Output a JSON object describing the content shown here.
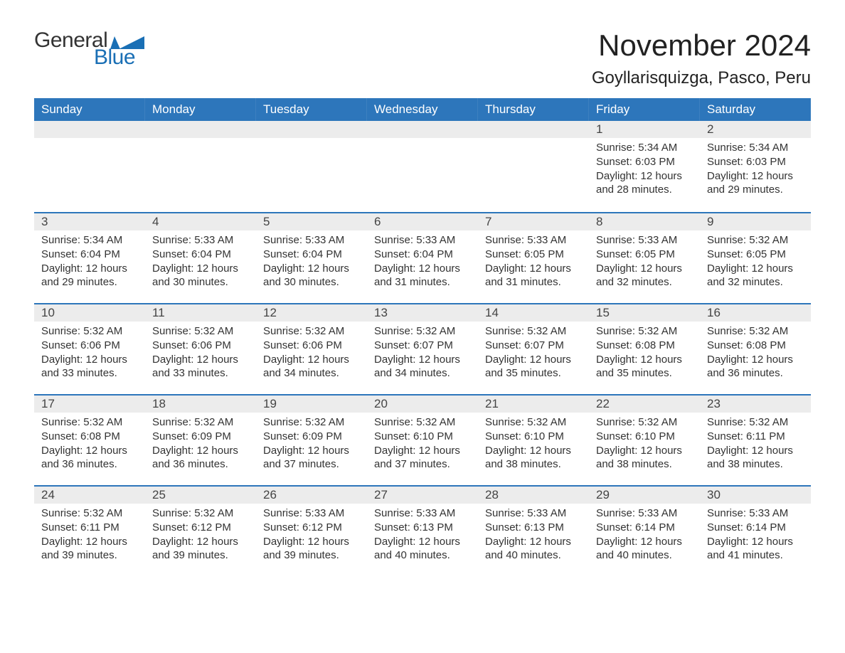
{
  "logo": {
    "text1": "General",
    "text2": "Blue"
  },
  "title": "November 2024",
  "location": "Goyllarisquizga, Pasco, Peru",
  "colors": {
    "header_bg": "#2d76bb",
    "header_text": "#ffffff",
    "daynum_bg": "#ececec",
    "week_border": "#2d76bb",
    "logo_accent": "#1a6fb5",
    "body_text": "#333333"
  },
  "day_headers": [
    "Sunday",
    "Monday",
    "Tuesday",
    "Wednesday",
    "Thursday",
    "Friday",
    "Saturday"
  ],
  "weeks": [
    [
      null,
      null,
      null,
      null,
      null,
      {
        "num": "1",
        "sunrise": "Sunrise: 5:34 AM",
        "sunset": "Sunset: 6:03 PM",
        "daylight": "Daylight: 12 hours and 28 minutes."
      },
      {
        "num": "2",
        "sunrise": "Sunrise: 5:34 AM",
        "sunset": "Sunset: 6:03 PM",
        "daylight": "Daylight: 12 hours and 29 minutes."
      }
    ],
    [
      {
        "num": "3",
        "sunrise": "Sunrise: 5:34 AM",
        "sunset": "Sunset: 6:04 PM",
        "daylight": "Daylight: 12 hours and 29 minutes."
      },
      {
        "num": "4",
        "sunrise": "Sunrise: 5:33 AM",
        "sunset": "Sunset: 6:04 PM",
        "daylight": "Daylight: 12 hours and 30 minutes."
      },
      {
        "num": "5",
        "sunrise": "Sunrise: 5:33 AM",
        "sunset": "Sunset: 6:04 PM",
        "daylight": "Daylight: 12 hours and 30 minutes."
      },
      {
        "num": "6",
        "sunrise": "Sunrise: 5:33 AM",
        "sunset": "Sunset: 6:04 PM",
        "daylight": "Daylight: 12 hours and 31 minutes."
      },
      {
        "num": "7",
        "sunrise": "Sunrise: 5:33 AM",
        "sunset": "Sunset: 6:05 PM",
        "daylight": "Daylight: 12 hours and 31 minutes."
      },
      {
        "num": "8",
        "sunrise": "Sunrise: 5:33 AM",
        "sunset": "Sunset: 6:05 PM",
        "daylight": "Daylight: 12 hours and 32 minutes."
      },
      {
        "num": "9",
        "sunrise": "Sunrise: 5:32 AM",
        "sunset": "Sunset: 6:05 PM",
        "daylight": "Daylight: 12 hours and 32 minutes."
      }
    ],
    [
      {
        "num": "10",
        "sunrise": "Sunrise: 5:32 AM",
        "sunset": "Sunset: 6:06 PM",
        "daylight": "Daylight: 12 hours and 33 minutes."
      },
      {
        "num": "11",
        "sunrise": "Sunrise: 5:32 AM",
        "sunset": "Sunset: 6:06 PM",
        "daylight": "Daylight: 12 hours and 33 minutes."
      },
      {
        "num": "12",
        "sunrise": "Sunrise: 5:32 AM",
        "sunset": "Sunset: 6:06 PM",
        "daylight": "Daylight: 12 hours and 34 minutes."
      },
      {
        "num": "13",
        "sunrise": "Sunrise: 5:32 AM",
        "sunset": "Sunset: 6:07 PM",
        "daylight": "Daylight: 12 hours and 34 minutes."
      },
      {
        "num": "14",
        "sunrise": "Sunrise: 5:32 AM",
        "sunset": "Sunset: 6:07 PM",
        "daylight": "Daylight: 12 hours and 35 minutes."
      },
      {
        "num": "15",
        "sunrise": "Sunrise: 5:32 AM",
        "sunset": "Sunset: 6:08 PM",
        "daylight": "Daylight: 12 hours and 35 minutes."
      },
      {
        "num": "16",
        "sunrise": "Sunrise: 5:32 AM",
        "sunset": "Sunset: 6:08 PM",
        "daylight": "Daylight: 12 hours and 36 minutes."
      }
    ],
    [
      {
        "num": "17",
        "sunrise": "Sunrise: 5:32 AM",
        "sunset": "Sunset: 6:08 PM",
        "daylight": "Daylight: 12 hours and 36 minutes."
      },
      {
        "num": "18",
        "sunrise": "Sunrise: 5:32 AM",
        "sunset": "Sunset: 6:09 PM",
        "daylight": "Daylight: 12 hours and 36 minutes."
      },
      {
        "num": "19",
        "sunrise": "Sunrise: 5:32 AM",
        "sunset": "Sunset: 6:09 PM",
        "daylight": "Daylight: 12 hours and 37 minutes."
      },
      {
        "num": "20",
        "sunrise": "Sunrise: 5:32 AM",
        "sunset": "Sunset: 6:10 PM",
        "daylight": "Daylight: 12 hours and 37 minutes."
      },
      {
        "num": "21",
        "sunrise": "Sunrise: 5:32 AM",
        "sunset": "Sunset: 6:10 PM",
        "daylight": "Daylight: 12 hours and 38 minutes."
      },
      {
        "num": "22",
        "sunrise": "Sunrise: 5:32 AM",
        "sunset": "Sunset: 6:10 PM",
        "daylight": "Daylight: 12 hours and 38 minutes."
      },
      {
        "num": "23",
        "sunrise": "Sunrise: 5:32 AM",
        "sunset": "Sunset: 6:11 PM",
        "daylight": "Daylight: 12 hours and 38 minutes."
      }
    ],
    [
      {
        "num": "24",
        "sunrise": "Sunrise: 5:32 AM",
        "sunset": "Sunset: 6:11 PM",
        "daylight": "Daylight: 12 hours and 39 minutes."
      },
      {
        "num": "25",
        "sunrise": "Sunrise: 5:32 AM",
        "sunset": "Sunset: 6:12 PM",
        "daylight": "Daylight: 12 hours and 39 minutes."
      },
      {
        "num": "26",
        "sunrise": "Sunrise: 5:33 AM",
        "sunset": "Sunset: 6:12 PM",
        "daylight": "Daylight: 12 hours and 39 minutes."
      },
      {
        "num": "27",
        "sunrise": "Sunrise: 5:33 AM",
        "sunset": "Sunset: 6:13 PM",
        "daylight": "Daylight: 12 hours and 40 minutes."
      },
      {
        "num": "28",
        "sunrise": "Sunrise: 5:33 AM",
        "sunset": "Sunset: 6:13 PM",
        "daylight": "Daylight: 12 hours and 40 minutes."
      },
      {
        "num": "29",
        "sunrise": "Sunrise: 5:33 AM",
        "sunset": "Sunset: 6:14 PM",
        "daylight": "Daylight: 12 hours and 40 minutes."
      },
      {
        "num": "30",
        "sunrise": "Sunrise: 5:33 AM",
        "sunset": "Sunset: 6:14 PM",
        "daylight": "Daylight: 12 hours and 41 minutes."
      }
    ]
  ]
}
